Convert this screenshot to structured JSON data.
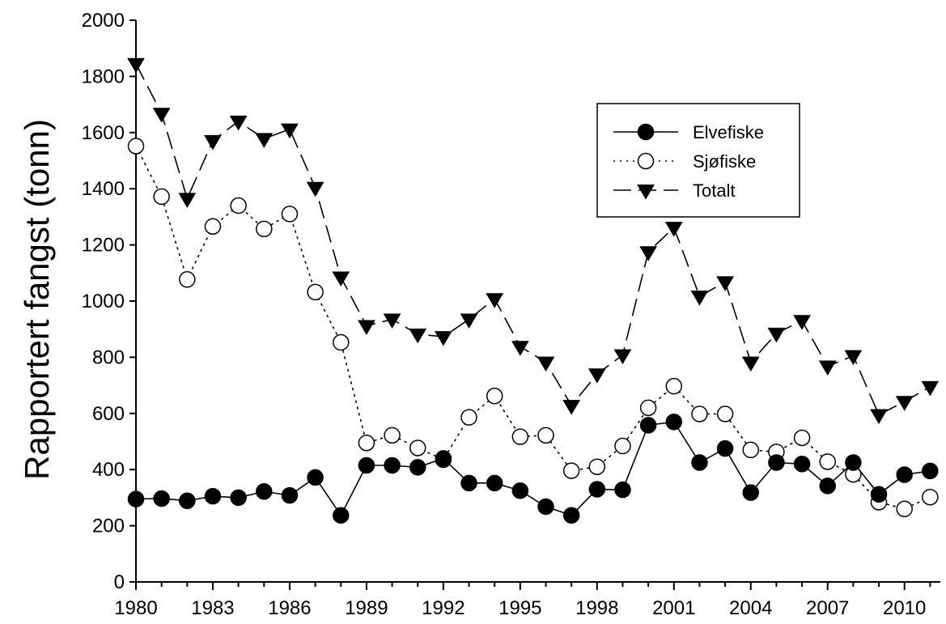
{
  "chart_data": {
    "type": "line",
    "title": "",
    "xlabel": "",
    "ylabel": "Rapportert fangst (tonn)",
    "xlim": [
      1980,
      2011.4
    ],
    "ylim": [
      0,
      2000
    ],
    "x_ticks": [
      1980,
      1983,
      1986,
      1989,
      1992,
      1995,
      1998,
      2001,
      2004,
      2007,
      2010
    ],
    "y_ticks": [
      0,
      200,
      400,
      600,
      800,
      1000,
      1200,
      1400,
      1600,
      1800,
      2000
    ],
    "grid": false,
    "legend_position": "top-right",
    "x": [
      1980,
      1981,
      1982,
      1983,
      1984,
      1985,
      1986,
      1987,
      1988,
      1989,
      1990,
      1991,
      1992,
      1993,
      1994,
      1995,
      1996,
      1997,
      1998,
      1999,
      2000,
      2001,
      2002,
      2003,
      2004,
      2005,
      2006,
      2007,
      2008,
      2009,
      2010,
      2011
    ],
    "series": [
      {
        "name": "Elvefiske",
        "line_style": "solid",
        "marker": "filled-circle",
        "values": [
          295,
          297,
          289,
          305,
          300,
          322,
          308,
          372,
          237,
          415,
          415,
          408,
          440,
          352,
          352,
          325,
          268,
          237,
          330,
          328,
          558,
          570,
          425,
          475,
          318,
          425,
          420,
          342,
          425,
          312,
          382,
          395
        ]
      },
      {
        "name": "Sjøfiske",
        "line_style": "dotted",
        "marker": "open-circle",
        "values": [
          1552,
          1372,
          1077,
          1266,
          1340,
          1257,
          1310,
          1032,
          853,
          495,
          522,
          477,
          435,
          586,
          662,
          517,
          522,
          396,
          410,
          484,
          620,
          697,
          598,
          598,
          470,
          463,
          513,
          428,
          383,
          284,
          260,
          302
        ]
      },
      {
        "name": "Totalt",
        "line_style": "dashed",
        "marker": "filled-triangle-down",
        "values": [
          1845,
          1668,
          1365,
          1571,
          1640,
          1578,
          1612,
          1404,
          1085,
          912,
          935,
          882,
          873,
          935,
          1008,
          838,
          782,
          628,
          740,
          808,
          1175,
          1262,
          1017,
          1068,
          782,
          885,
          930,
          768,
          805,
          595,
          642,
          695
        ]
      }
    ]
  }
}
